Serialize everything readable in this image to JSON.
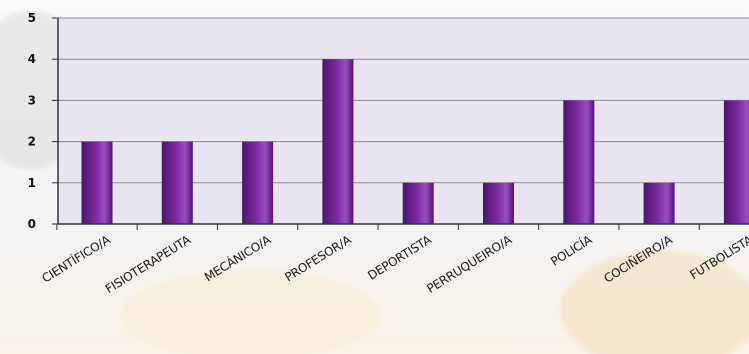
{
  "chart_data": {
    "type": "bar",
    "categories": [
      "CIENTÍFICO/A",
      "FISIOTERAPEUTA",
      "MECÁNICO/A",
      "PROFESOR/A",
      "DEPORTISTA",
      "PERRUQUEIRO/A",
      "POLICÍA",
      "COCIÑEIRO/A",
      "FUTBOLISTA"
    ],
    "values": [
      2,
      2,
      2,
      4,
      1,
      1,
      3,
      1,
      3
    ],
    "yticks": [
      "0",
      "1",
      "2",
      "3",
      "4",
      "5"
    ],
    "ylim": [
      0,
      5
    ],
    "grid": true,
    "legend": "none"
  },
  "colors": {
    "plot_background": "#e8e4f0",
    "bar_fill": "#7a2aa0",
    "bar_dark": "#4f1470",
    "bar_light": "#9a4cc2",
    "gridline": "#8c8c8c",
    "axis": "#333333"
  }
}
